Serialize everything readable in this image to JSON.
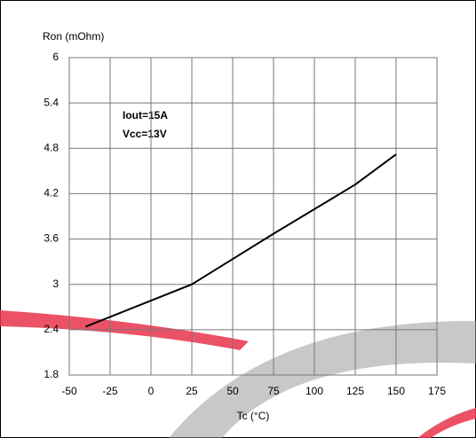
{
  "chart_data": {
    "type": "line",
    "y_label": "Ron (mOhm)",
    "x_label": "Tc (°C)",
    "annotations": [
      "Iout=15A",
      "Vcc=13V"
    ],
    "x": [
      -40,
      25,
      75,
      125,
      150
    ],
    "series": [
      {
        "color": "#000000",
        "values": [
          2.44,
          3.0,
          3.67,
          4.32,
          4.72
        ]
      }
    ],
    "xlim": [
      -50,
      175
    ],
    "xticks": [
      -50,
      -25,
      0,
      25,
      50,
      75,
      100,
      125,
      150,
      175
    ],
    "ylim": [
      1.8,
      6
    ],
    "yticks": [
      1.8,
      2.4,
      3,
      3.6,
      4.2,
      4.8,
      5.4,
      6
    ],
    "grid": true
  }
}
